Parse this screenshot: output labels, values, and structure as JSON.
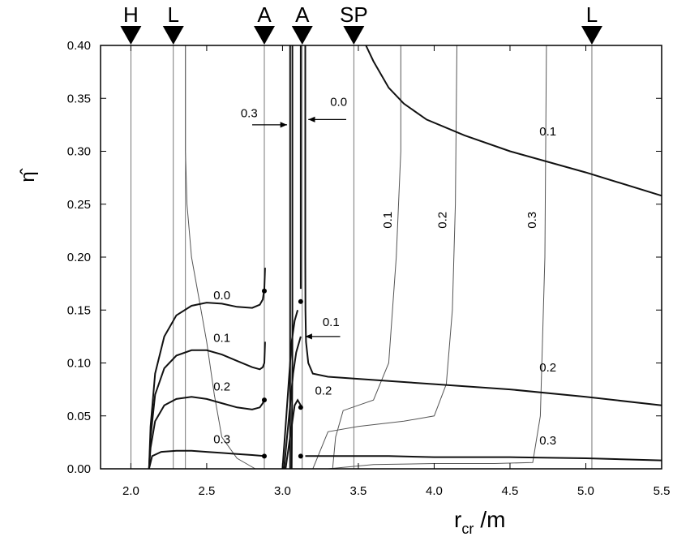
{
  "chart_data": {
    "type": "line",
    "xlabel": "r",
    "xlabel_sub": "cr",
    "xlabel_suffix": "/m",
    "ylabel": "η̂",
    "xlim": [
      1.8,
      5.5
    ],
    "ylim": [
      0.0,
      0.4
    ],
    "xticks": [
      "2.0",
      "2.5",
      "3.0",
      "3.5",
      "4.0",
      "4.5",
      "5.0",
      "5.5"
    ],
    "yticks": [
      "0.00",
      "0.05",
      "0.10",
      "0.15",
      "0.20",
      "0.25",
      "0.30",
      "0.35",
      "0.40"
    ],
    "markers": [
      {
        "label": "H",
        "x": 2.0
      },
      {
        "label": "L",
        "x": 2.28
      },
      {
        "label": "A",
        "x": 2.88
      },
      {
        "label": "A",
        "x": 3.13
      },
      {
        "label": "SP",
        "x": 3.47
      },
      {
        "label": "L",
        "x": 5.04
      }
    ],
    "vertical_lines": [
      2.0,
      2.28,
      2.36,
      2.88,
      3.13,
      3.47,
      5.04
    ],
    "thick_curves": [
      {
        "x": [
          2.12,
          2.13,
          2.16,
          2.22,
          2.3,
          2.4,
          2.5,
          2.6,
          2.7,
          2.8,
          2.85,
          2.87,
          2.88,
          2.885
        ],
        "y": [
          0.0,
          0.04,
          0.09,
          0.125,
          0.145,
          0.154,
          0.157,
          0.156,
          0.153,
          0.152,
          0.155,
          0.16,
          0.17,
          0.19
        ]
      },
      {
        "x": [
          2.12,
          2.13,
          2.16,
          2.22,
          2.3,
          2.4,
          2.5,
          2.6,
          2.7,
          2.8,
          2.85,
          2.87,
          2.88,
          2.885
        ],
        "y": [
          0.0,
          0.03,
          0.07,
          0.095,
          0.107,
          0.112,
          0.112,
          0.108,
          0.102,
          0.096,
          0.094,
          0.096,
          0.1,
          0.12
        ]
      },
      {
        "x": [
          2.12,
          2.13,
          2.16,
          2.22,
          2.3,
          2.4,
          2.5,
          2.6,
          2.7,
          2.8,
          2.85,
          2.87,
          2.88
        ],
        "y": [
          0.0,
          0.02,
          0.045,
          0.06,
          0.066,
          0.068,
          0.066,
          0.062,
          0.058,
          0.056,
          0.058,
          0.062,
          0.066
        ]
      },
      {
        "x": [
          2.12,
          2.14,
          2.2,
          2.3,
          2.4,
          2.5,
          2.6,
          2.7,
          2.8,
          2.88
        ],
        "y": [
          0.0,
          0.012,
          0.016,
          0.017,
          0.017,
          0.016,
          0.015,
          0.014,
          0.013,
          0.012
        ]
      },
      {
        "x": [
          3.15,
          3.15,
          3.151,
          3.155,
          3.17,
          3.2,
          3.3,
          3.5,
          4.0,
          4.5,
          5.0,
          5.5
        ],
        "y": [
          0.4,
          0.2,
          0.15,
          0.12,
          0.1,
          0.09,
          0.087,
          0.085,
          0.08,
          0.075,
          0.068,
          0.06
        ]
      },
      {
        "x": [
          3.15,
          3.2,
          3.4,
          3.7,
          4.0,
          4.5,
          5.0,
          5.5
        ],
        "y": [
          0.012,
          0.012,
          0.012,
          0.012,
          0.011,
          0.011,
          0.01,
          0.008
        ]
      },
      {
        "x": [
          3.55,
          3.6,
          3.7,
          3.8,
          3.95,
          4.2,
          4.5,
          5.0,
          5.5
        ],
        "y": [
          0.4,
          0.385,
          0.36,
          0.345,
          0.33,
          0.315,
          0.3,
          0.28,
          0.258
        ]
      },
      {
        "x": [
          3.0,
          3.02,
          3.04,
          3.06,
          3.08,
          3.1
        ],
        "y": [
          0.0,
          0.04,
          0.08,
          0.12,
          0.14,
          0.15
        ]
      },
      {
        "x": [
          3.01,
          3.03,
          3.05,
          3.07,
          3.09,
          3.12
        ],
        "y": [
          0.0,
          0.03,
          0.06,
          0.09,
          0.11,
          0.125
        ]
      },
      {
        "x": [
          3.02,
          3.04,
          3.06,
          3.08,
          3.1,
          3.12
        ],
        "y": [
          0.0,
          0.02,
          0.04,
          0.06,
          0.065,
          0.06
        ]
      },
      {
        "x": [
          3.06,
          3.065,
          3.065,
          3.065
        ],
        "y": [
          0.0,
          0.1,
          0.3,
          0.4
        ]
      },
      {
        "x": [
          3.05,
          3.05,
          3.05
        ],
        "y": [
          0.0,
          0.2,
          0.4
        ]
      },
      {
        "x": [
          3.12,
          3.12,
          3.12
        ],
        "y": [
          0.17,
          0.3,
          0.4
        ]
      }
    ],
    "thin_curves": [
      {
        "x": [
          2.82,
          2.7,
          2.6,
          2.55,
          2.5,
          2.45,
          2.4,
          2.37,
          2.36,
          2.36
        ],
        "y": [
          0.0,
          0.01,
          0.03,
          0.07,
          0.12,
          0.16,
          0.2,
          0.25,
          0.3,
          0.4
        ]
      },
      {
        "x": [
          3.33,
          3.35,
          3.4,
          3.5,
          3.6,
          3.7,
          3.75,
          3.78,
          3.78
        ],
        "y": [
          0.0,
          0.03,
          0.055,
          0.06,
          0.065,
          0.1,
          0.2,
          0.3,
          0.4
        ]
      },
      {
        "x": [
          3.2,
          3.3,
          3.5,
          3.8,
          4.0,
          4.08,
          4.12,
          4.14,
          4.15
        ],
        "y": [
          0.0,
          0.035,
          0.04,
          0.045,
          0.05,
          0.08,
          0.15,
          0.25,
          0.4
        ]
      },
      {
        "x": [
          3.3,
          3.6,
          4.0,
          4.4,
          4.65,
          4.7,
          4.73,
          4.74
        ],
        "y": [
          0.0,
          0.004,
          0.005,
          0.005,
          0.006,
          0.05,
          0.2,
          0.4
        ]
      }
    ],
    "points": [
      {
        "x": 2.88,
        "y": 0.168
      },
      {
        "x": 2.88,
        "y": 0.065
      },
      {
        "x": 2.88,
        "y": 0.012
      },
      {
        "x": 3.12,
        "y": 0.158
      },
      {
        "x": 3.12,
        "y": 0.058
      },
      {
        "x": 3.12,
        "y": 0.012
      }
    ],
    "curve_labels": [
      {
        "text": "0.0",
        "x": 2.6,
        "y": 0.16
      },
      {
        "text": "0.1",
        "x": 2.6,
        "y": 0.12
      },
      {
        "text": "0.2",
        "x": 2.6,
        "y": 0.074
      },
      {
        "text": "0.3",
        "x": 2.6,
        "y": 0.024
      },
      {
        "text": "0.3",
        "x": 2.78,
        "y": 0.332
      },
      {
        "text": "0.0",
        "x": 3.37,
        "y": 0.343
      },
      {
        "text": "0.1",
        "x": 3.32,
        "y": 0.135
      },
      {
        "text": "0.2",
        "x": 3.27,
        "y": 0.07
      },
      {
        "text": "0.1",
        "x": 4.75,
        "y": 0.315
      },
      {
        "text": "0.2",
        "x": 4.75,
        "y": 0.092
      },
      {
        "text": "0.3",
        "x": 4.75,
        "y": 0.023
      },
      {
        "text": "0.1",
        "x": 3.72,
        "y": 0.235,
        "rotate": true
      },
      {
        "text": "0.2",
        "x": 4.08,
        "y": 0.235,
        "rotate": true
      },
      {
        "text": "0.3",
        "x": 4.67,
        "y": 0.235,
        "rotate": true
      }
    ],
    "arrows": [
      {
        "from": [
          2.8,
          0.325
        ],
        "to": [
          3.03,
          0.325
        ]
      },
      {
        "from": [
          3.42,
          0.33
        ],
        "to": [
          3.17,
          0.33
        ]
      },
      {
        "from": [
          3.38,
          0.125
        ],
        "to": [
          3.15,
          0.125
        ]
      }
    ],
    "grid": false,
    "legend": "none"
  }
}
